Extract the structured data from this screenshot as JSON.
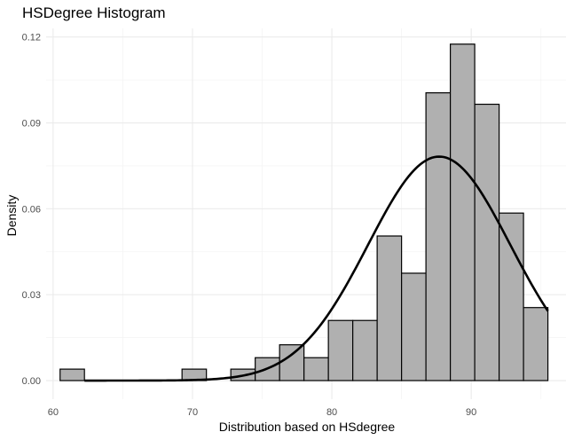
{
  "chart_data": {
    "type": "bar",
    "title": "HSDegree Histogram",
    "xlabel": "Distribution based on HSdegree",
    "ylabel": "Density",
    "xlim": [
      59.5,
      96.8
    ],
    "ylim": [
      -0.0065,
      0.123
    ],
    "x_ticks": [
      60,
      70,
      80,
      90
    ],
    "y_ticks": [
      0.0,
      0.03,
      0.06,
      0.09,
      0.12
    ],
    "x_tick_labels": [
      "60",
      "70",
      "80",
      "90"
    ],
    "y_tick_labels": [
      "0.00",
      "0.03",
      "0.06",
      "0.09",
      "0.12"
    ],
    "grid": true,
    "bin_width": 1.75,
    "bins": [
      {
        "start": 60.5,
        "density": 0.004
      },
      {
        "start": 62.25,
        "density": 0.0
      },
      {
        "start": 64.0,
        "density": 0.0
      },
      {
        "start": 65.75,
        "density": 0.0
      },
      {
        "start": 67.5,
        "density": 0.0
      },
      {
        "start": 69.25,
        "density": 0.004
      },
      {
        "start": 71.0,
        "density": 0.0
      },
      {
        "start": 72.75,
        "density": 0.004
      },
      {
        "start": 74.5,
        "density": 0.008
      },
      {
        "start": 76.25,
        "density": 0.0125
      },
      {
        "start": 78.0,
        "density": 0.008
      },
      {
        "start": 79.75,
        "density": 0.021
      },
      {
        "start": 81.5,
        "density": 0.021
      },
      {
        "start": 83.25,
        "density": 0.0505
      },
      {
        "start": 85.0,
        "density": 0.0375
      },
      {
        "start": 86.75,
        "density": 0.1005
      },
      {
        "start": 88.5,
        "density": 0.1175
      },
      {
        "start": 90.25,
        "density": 0.0965
      },
      {
        "start": 92.0,
        "density": 0.0585
      },
      {
        "start": 93.75,
        "density": 0.0255
      }
    ],
    "density_curve": {
      "type": "normal",
      "mean": 87.7,
      "sd": 5.1,
      "x_range": [
        62.25,
        95.5
      ]
    },
    "colors": {
      "bar_fill": "#b0b0b0",
      "bar_stroke": "#000000",
      "curve": "#000000",
      "grid_major": "#ebebeb",
      "grid_minor": "#f4f4f4"
    }
  }
}
